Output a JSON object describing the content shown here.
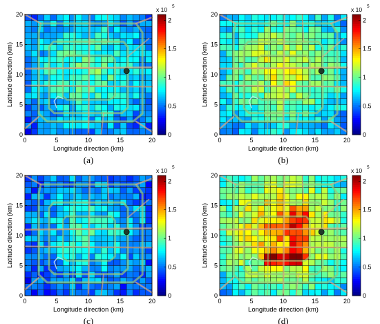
{
  "chart_data": [
    {
      "type": "heatmap",
      "panel_label": "(a)",
      "xlabel": "Longitude direction (km)",
      "ylabel": "Latitude direction (km)",
      "xlim": [
        0,
        20
      ],
      "ylim": [
        0,
        20
      ],
      "xticks": [
        "0",
        "5",
        "10",
        "15",
        "20"
      ],
      "yticks": [
        "0",
        "5",
        "10",
        "15",
        "20"
      ],
      "colorbar": {
        "range": [
          0,
          210000
        ],
        "ticks": [
          "0",
          "0.5",
          "1",
          "1.5",
          "2"
        ],
        "exponent_base": "x 10",
        "exponent": "5"
      },
      "grid_cells": [
        20,
        20
      ],
      "level": 0.85,
      "marker": {
        "x": 16,
        "y": 10.6
      }
    },
    {
      "type": "heatmap",
      "panel_label": "(b)",
      "xlabel": "Longitude direction (km)",
      "ylabel": "Latitude direction (km)",
      "xlim": [
        0,
        20
      ],
      "ylim": [
        0,
        20
      ],
      "xticks": [
        "0",
        "5",
        "10",
        "15",
        "20"
      ],
      "yticks": [
        "0",
        "5",
        "10",
        "15",
        "20"
      ],
      "colorbar": {
        "range": [
          0,
          210000
        ],
        "ticks": [
          "0",
          "0.5",
          "1",
          "1.5",
          "2"
        ],
        "exponent_base": "x 10",
        "exponent": "5"
      },
      "grid_cells": [
        20,
        20
      ],
      "level": 1.1,
      "marker": {
        "x": 16,
        "y": 10.6
      }
    },
    {
      "type": "heatmap",
      "panel_label": "(c)",
      "xlabel": "Longitude direction (km)",
      "ylabel": "Latitude direction (km)",
      "xlim": [
        0,
        20
      ],
      "ylim": [
        0,
        20
      ],
      "xticks": [
        "0",
        "5",
        "10",
        "15",
        "20"
      ],
      "yticks": [
        "0",
        "5",
        "10",
        "15",
        "20"
      ],
      "colorbar": {
        "range": [
          0,
          210000
        ],
        "ticks": [
          "0",
          "0.5",
          "1",
          "1.5",
          "2"
        ],
        "exponent_base": "x 10",
        "exponent": "5"
      },
      "grid_cells": [
        20,
        20
      ],
      "level": 0.72,
      "marker": {
        "x": 16,
        "y": 10.6
      }
    },
    {
      "type": "heatmap",
      "panel_label": "(d)",
      "xlabel": "Longitude direction (km)",
      "ylabel": "Latitude direction (km)",
      "xlim": [
        0,
        20
      ],
      "ylim": [
        0,
        20
      ],
      "xticks": [
        "0",
        "5",
        "10",
        "15",
        "20"
      ],
      "yticks": [
        "0",
        "5",
        "10",
        "15",
        "20"
      ],
      "colorbar": {
        "range": [
          0,
          210000
        ],
        "ticks": [
          "0",
          "0.5",
          "1",
          "1.5",
          "2"
        ],
        "exponent_base": "x 10",
        "exponent": "5"
      },
      "grid_cells": [
        20,
        20
      ],
      "level": 1.35,
      "marker": {
        "x": 16,
        "y": 10.6
      }
    }
  ]
}
